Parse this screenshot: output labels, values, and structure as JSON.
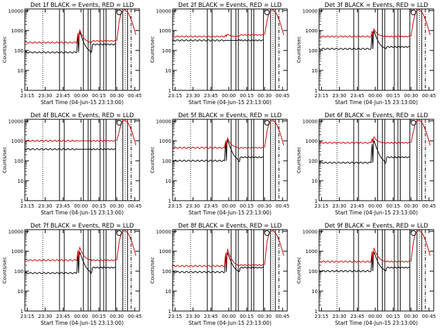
{
  "shared": {
    "ylabel": "Counts/sec",
    "xlabel": "Start Time (04-Jun-15 23:13:00)",
    "xtick_labels": [
      "23:15",
      "23:30",
      "23:45",
      "00:00",
      "00:15",
      "00:30",
      "00:45"
    ],
    "ytick_labels": [
      "1",
      "10",
      "100",
      "1000",
      "10000"
    ],
    "colors": {
      "events": "#000000",
      "lld": "#cc0000",
      "axes": "#000000",
      "background": "#ffffff"
    }
  },
  "chart_data": [
    {
      "type": "line",
      "title": "Det 1f BLACK = Events, RED = LLD",
      "y_scale": "log",
      "ylim": [
        1,
        12000
      ],
      "x_range_minutes": [
        0,
        96
      ],
      "series": [
        {
          "name": "Events",
          "color": "#000000",
          "baseline": 80,
          "peak": 1300,
          "post": 200
        },
        {
          "name": "LLD",
          "color": "#cc0000",
          "baseline": 250,
          "peak": 1500,
          "post": 300
        }
      ]
    },
    {
      "type": "line",
      "title": "Det 2f BLACK = Events, RED = LLD",
      "y_scale": "log",
      "ylim": [
        1,
        12000
      ],
      "x_range_minutes": [
        0,
        96
      ],
      "series": [
        {
          "name": "Events",
          "color": "#000000",
          "baseline": 320,
          "peak": 320,
          "post": 320
        },
        {
          "name": "LLD",
          "color": "#cc0000",
          "baseline": 500,
          "peak": 750,
          "post": 600
        }
      ]
    },
    {
      "type": "line",
      "title": "Det 3f BLACK = Events, RED = LLD",
      "y_scale": "log",
      "ylim": [
        1,
        12000
      ],
      "x_range_minutes": [
        0,
        96
      ],
      "series": [
        {
          "name": "Events",
          "color": "#000000",
          "baseline": 120,
          "peak": 1400,
          "post": 150
        },
        {
          "name": "LLD",
          "color": "#cc0000",
          "baseline": 500,
          "peak": 1600,
          "post": 500
        }
      ]
    },
    {
      "type": "line",
      "title": "Det 4f BLACK = Events, RED = LLD",
      "y_scale": "log",
      "ylim": [
        1,
        12000
      ],
      "x_range_minutes": [
        0,
        96
      ],
      "series": [
        {
          "name": "Events",
          "color": "#000000",
          "baseline": 380,
          "peak": 380,
          "post": 380
        },
        {
          "name": "LLD",
          "color": "#cc0000",
          "baseline": 1000,
          "peak": 1000,
          "post": 1000
        }
      ]
    },
    {
      "type": "line",
      "title": "Det 5f BLACK = Events, RED = LLD",
      "y_scale": "log",
      "ylim": [
        1,
        12000
      ],
      "x_range_minutes": [
        0,
        96
      ],
      "series": [
        {
          "name": "Events",
          "color": "#000000",
          "baseline": 100,
          "peak": 1700,
          "post": 150
        },
        {
          "name": "LLD",
          "color": "#cc0000",
          "baseline": 450,
          "peak": 1900,
          "post": 450
        }
      ]
    },
    {
      "type": "line",
      "title": "Det 6f BLACK = Events, RED = LLD",
      "y_scale": "log",
      "ylim": [
        1,
        12000
      ],
      "x_range_minutes": [
        0,
        96
      ],
      "series": [
        {
          "name": "Events",
          "color": "#000000",
          "baseline": 80,
          "peak": 1600,
          "post": 150
        },
        {
          "name": "LLD",
          "color": "#cc0000",
          "baseline": 800,
          "peak": 2000,
          "post": 800
        }
      ]
    },
    {
      "type": "line",
      "title": "Det 7f BLACK = Events, RED = LLD",
      "y_scale": "log",
      "ylim": [
        1,
        12000
      ],
      "x_range_minutes": [
        0,
        96
      ],
      "series": [
        {
          "name": "Events",
          "color": "#000000",
          "baseline": 80,
          "peak": 1400,
          "post": 150
        },
        {
          "name": "LLD",
          "color": "#cc0000",
          "baseline": 350,
          "peak": 2200,
          "post": 350
        }
      ]
    },
    {
      "type": "line",
      "title": "Det 8f BLACK = Events, RED = LLD",
      "y_scale": "log",
      "ylim": [
        1,
        12000
      ],
      "x_range_minutes": [
        0,
        96
      ],
      "series": [
        {
          "name": "Events",
          "color": "#000000",
          "baseline": 90,
          "peak": 1300,
          "post": 150
        },
        {
          "name": "LLD",
          "color": "#cc0000",
          "baseline": 180,
          "peak": 1800,
          "post": 200
        }
      ]
    },
    {
      "type": "line",
      "title": "Det 9f BLACK = Events, RED = LLD",
      "y_scale": "log",
      "ylim": [
        1,
        12000
      ],
      "x_range_minutes": [
        0,
        96
      ],
      "series": [
        {
          "name": "Events",
          "color": "#000000",
          "baseline": 100,
          "peak": 1400,
          "post": 150
        },
        {
          "name": "LLD",
          "color": "#cc0000",
          "baseline": 300,
          "peak": 2000,
          "post": 300
        }
      ]
    }
  ]
}
